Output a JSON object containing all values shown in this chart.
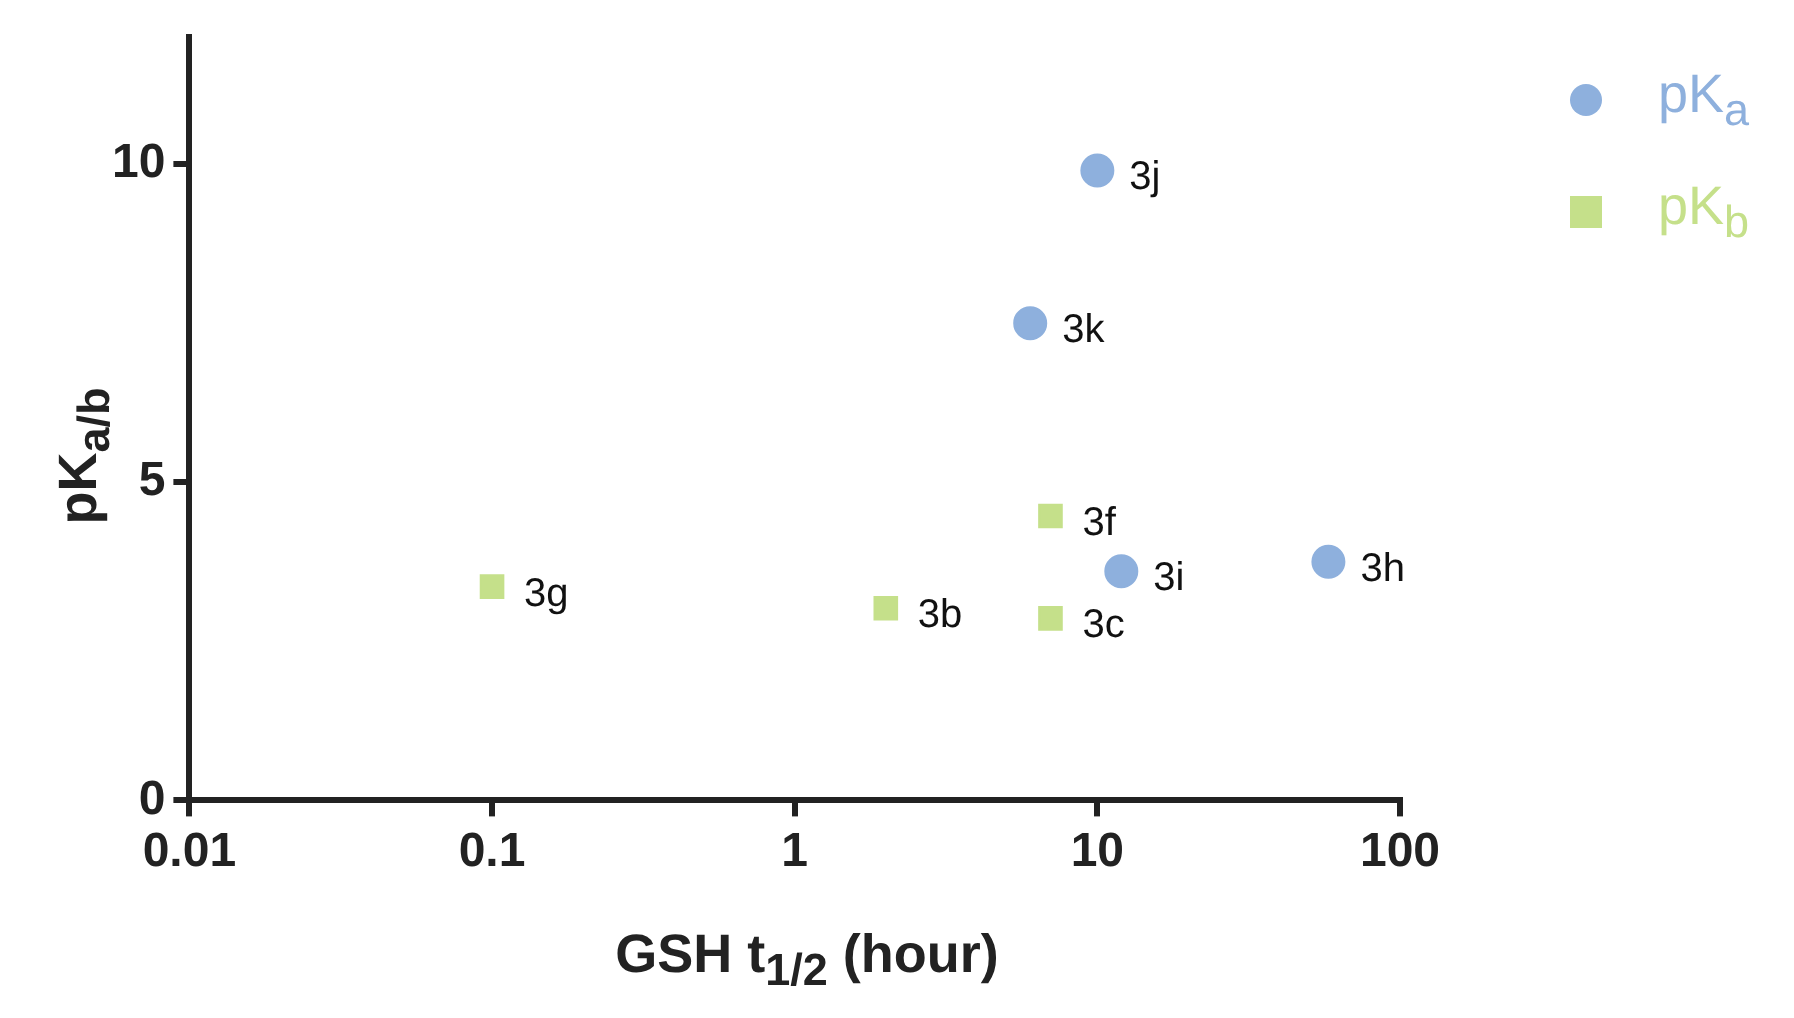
{
  "chart_data": {
    "type": "scatter",
    "xlabel": "GSH t$_{1/2}$ (hour)",
    "ylabel": "pK$_{a/b}$",
    "log": "x",
    "xlim": [
      0.01,
      100
    ],
    "xticks": [
      0.01,
      0.1,
      1,
      10,
      100
    ],
    "ylim": [
      0,
      12
    ],
    "yticks": [
      0,
      5,
      10
    ],
    "grid": false,
    "legend": "top right",
    "series": [
      {
        "name": "pK$_{a}$",
        "color": "#8eb0dd",
        "marker": "circle",
        "x": [
          10,
          6,
          12,
          58
        ],
        "values": [
          9.9,
          7.5,
          3.6,
          3.75
        ]
      },
      {
        "name": "pK$_{b}$",
        "color": "#c5e08a",
        "marker": "square",
        "x": [
          0.1,
          2,
          7,
          7
        ],
        "values": [
          3.36,
          3.02,
          4.47,
          2.86
        ]
      }
    ],
    "annotations": [
      {
        "text": "3j",
        "x": 10,
        "y": 9.9
      },
      {
        "text": "3k",
        "x": 6,
        "y": 7.5
      },
      {
        "text": "3i",
        "x": 12,
        "y": 3.6
      },
      {
        "text": "3h",
        "x": 58,
        "y": 3.75
      },
      {
        "text": "3g",
        "x": 0.1,
        "y": 3.36
      },
      {
        "text": "3b",
        "x": 2,
        "y": 3.02
      },
      {
        "text": "3f",
        "x": 7,
        "y": 4.47
      },
      {
        "text": "3c",
        "x": 7,
        "y": 2.86
      }
    ]
  }
}
